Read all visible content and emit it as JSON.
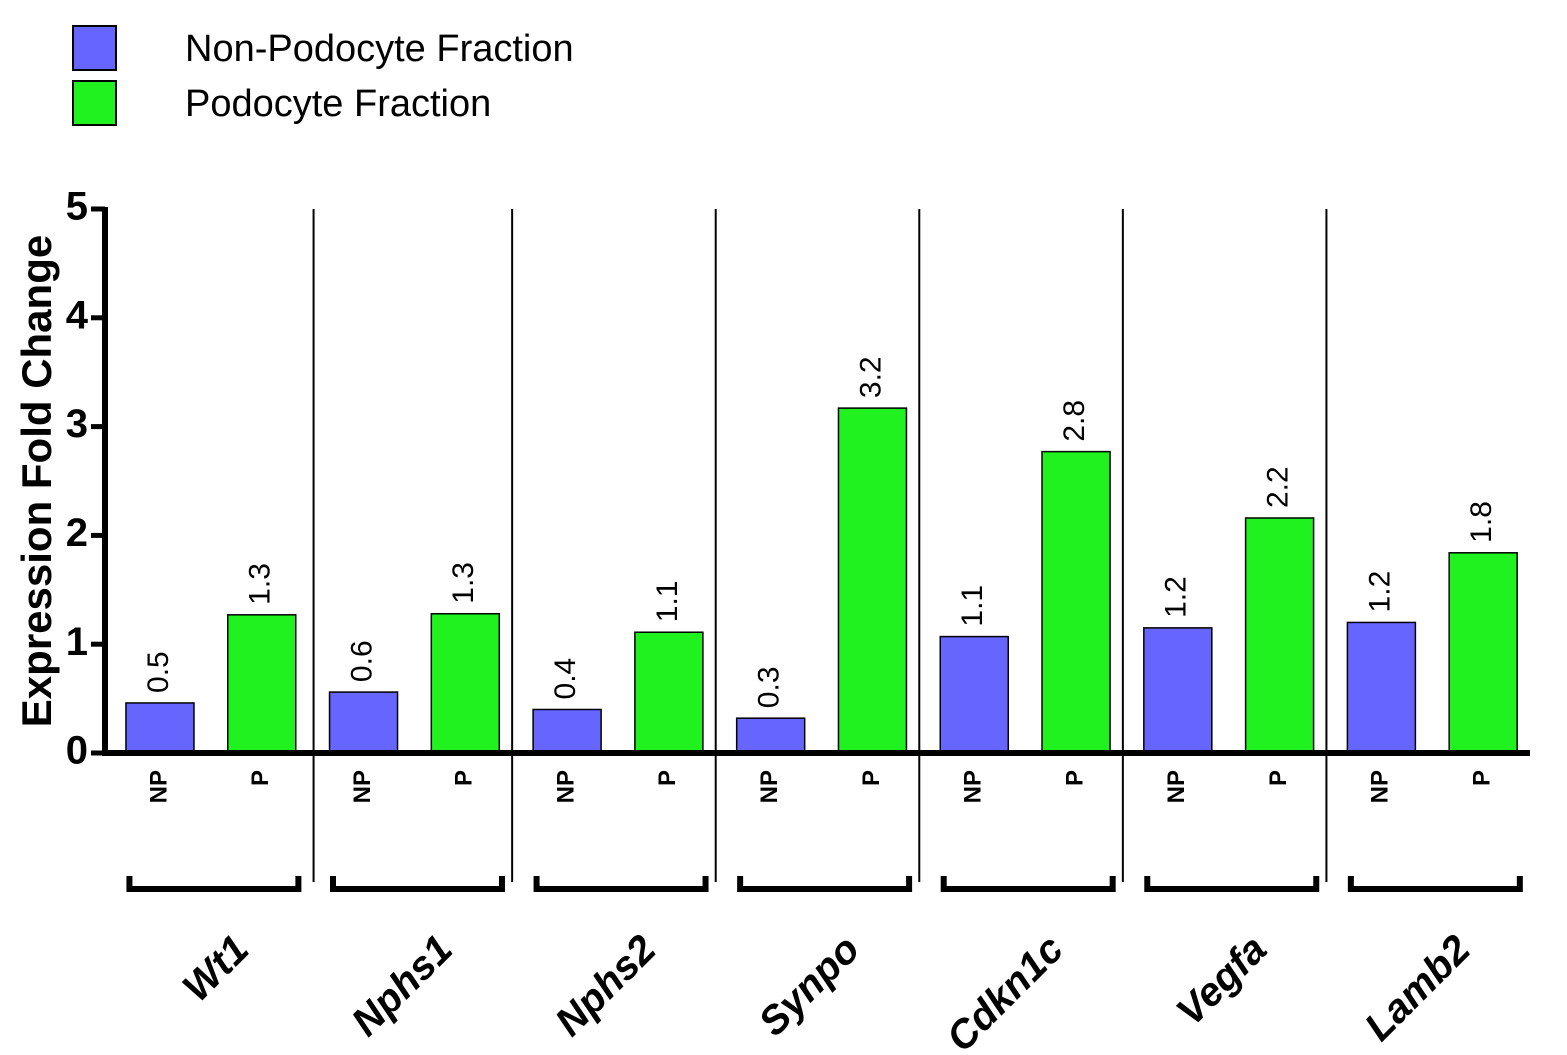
{
  "chart_data": {
    "type": "bar",
    "categories": [
      "Wt1",
      "Nphs1",
      "Nphs2",
      "Synpo",
      "Cdkn1c",
      "Vegfa",
      "Lamb2"
    ],
    "subcategories": [
      "NP",
      "P"
    ],
    "series": [
      {
        "name": "Non-Podocyte Fraction",
        "short": "NP",
        "color": "#6666ff",
        "values": [
          0.46,
          0.56,
          0.4,
          0.32,
          1.07,
          1.15,
          1.2
        ],
        "labels": [
          "0.5",
          "0.6",
          "0.4",
          "0.3",
          "1.1",
          "1.2",
          "1.2"
        ]
      },
      {
        "name": "Podocyte Fraction",
        "short": "P",
        "color": "#1ff21f",
        "values": [
          1.27,
          1.28,
          1.11,
          3.17,
          2.77,
          2.16,
          1.84
        ],
        "labels": [
          "1.3",
          "1.3",
          "1.1",
          "3.2",
          "2.8",
          "2.2",
          "1.8"
        ]
      }
    ],
    "title": "",
    "xlabel": "",
    "ylabel": "Expression Fold Change",
    "ylim": [
      0,
      5
    ],
    "yticks": [
      "0",
      "1",
      "2",
      "3",
      "4",
      "5"
    ],
    "legend_position": "top-left",
    "grid": false
  }
}
